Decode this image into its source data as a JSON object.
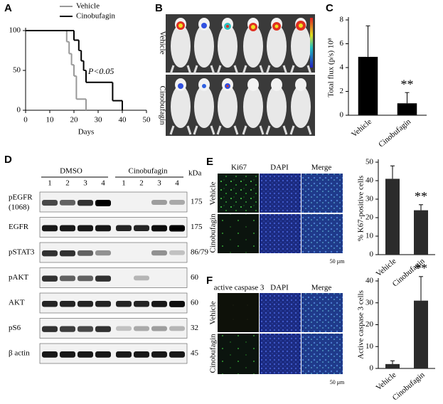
{
  "panels": [
    "A",
    "B",
    "C",
    "D",
    "E",
    "F"
  ],
  "chart_data": [
    {
      "type": "line",
      "step": true,
      "xlabel": "Days",
      "annotation": "P<0.05",
      "xlim": [
        0,
        50
      ],
      "xticks": [
        0,
        10,
        20,
        30,
        40,
        50
      ],
      "ylim": [
        0,
        100
      ],
      "yticks": [
        0,
        50,
        100
      ],
      "series": [
        {
          "name": "Vehicle",
          "color": "#999999",
          "x": [
            0,
            17,
            18,
            19,
            20,
            21,
            25
          ],
          "values": [
            100,
            86,
            71,
            57,
            43,
            14,
            0
          ]
        },
        {
          "name": "Cinobufagin",
          "color": "#000000",
          "x": [
            0,
            20,
            22,
            23,
            24,
            25,
            36,
            40
          ],
          "values": [
            100,
            88,
            75,
            62,
            50,
            35,
            12,
            0
          ]
        }
      ]
    },
    {
      "type": "bar",
      "ylabel": "Total flux (p/s) 10⁸",
      "categories": [
        "Vehicle",
        "Cinobufagin"
      ],
      "values": [
        4.9,
        1.0
      ],
      "errors": [
        2.6,
        0.9
      ],
      "color": "#000000",
      "ylim": [
        0,
        8
      ],
      "yticks": [
        0,
        2,
        4,
        6,
        8
      ],
      "annotation": "**"
    },
    {
      "type": "bar",
      "ylabel": "% K67-positive cells",
      "categories": [
        "Vehicle",
        "Cinobufagin"
      ],
      "values": [
        41,
        24
      ],
      "errors": [
        7,
        3
      ],
      "color": "#2b2b2b",
      "ylim": [
        0,
        50
      ],
      "yticks": [
        0,
        10,
        20,
        30,
        40,
        50
      ],
      "annotation": "**"
    },
    {
      "type": "bar",
      "ylabel": "Active caspase 3 cells",
      "categories": [
        "Vehicle",
        "Cinobufagin"
      ],
      "values": [
        2,
        31
      ],
      "errors": [
        1.5,
        11
      ],
      "color": "#2b2b2b",
      "ylim": [
        0,
        40
      ],
      "yticks": [
        0,
        10,
        20,
        30,
        40
      ],
      "annotation": "**"
    }
  ],
  "imaging": {
    "rows": [
      "Vehicle",
      "Cinobufagin"
    ]
  },
  "blot": {
    "groups": [
      "DMSO",
      "Cinobufagin"
    ],
    "unit": "kDa",
    "lanes": [
      "1",
      "2",
      "3",
      "4",
      "1",
      "2",
      "3",
      "4"
    ],
    "rows": [
      {
        "label": "pEGFR",
        "sub": "(1068)",
        "kda": "175"
      },
      {
        "label": "EGFR",
        "kda": "175"
      },
      {
        "label": "pSTAT3",
        "kda": "86/79"
      },
      {
        "label": "pAKT",
        "kda": "60"
      },
      {
        "label": "AKT",
        "kda": "60"
      },
      {
        "label": "pS6",
        "kda": "32"
      },
      {
        "label": "β actin",
        "kda": "45"
      }
    ]
  },
  "ki67": {
    "headers": [
      "Ki67",
      "DAPI",
      "Merge"
    ],
    "rows": [
      "Vehicle",
      "Cinobufagin"
    ],
    "scale": "50 µm"
  },
  "caspase": {
    "headers": [
      "active caspase 3",
      "DAPI",
      "Merge"
    ],
    "rows": [
      "Vehicle",
      "Cinobufagin"
    ],
    "scale": "50 μm"
  }
}
